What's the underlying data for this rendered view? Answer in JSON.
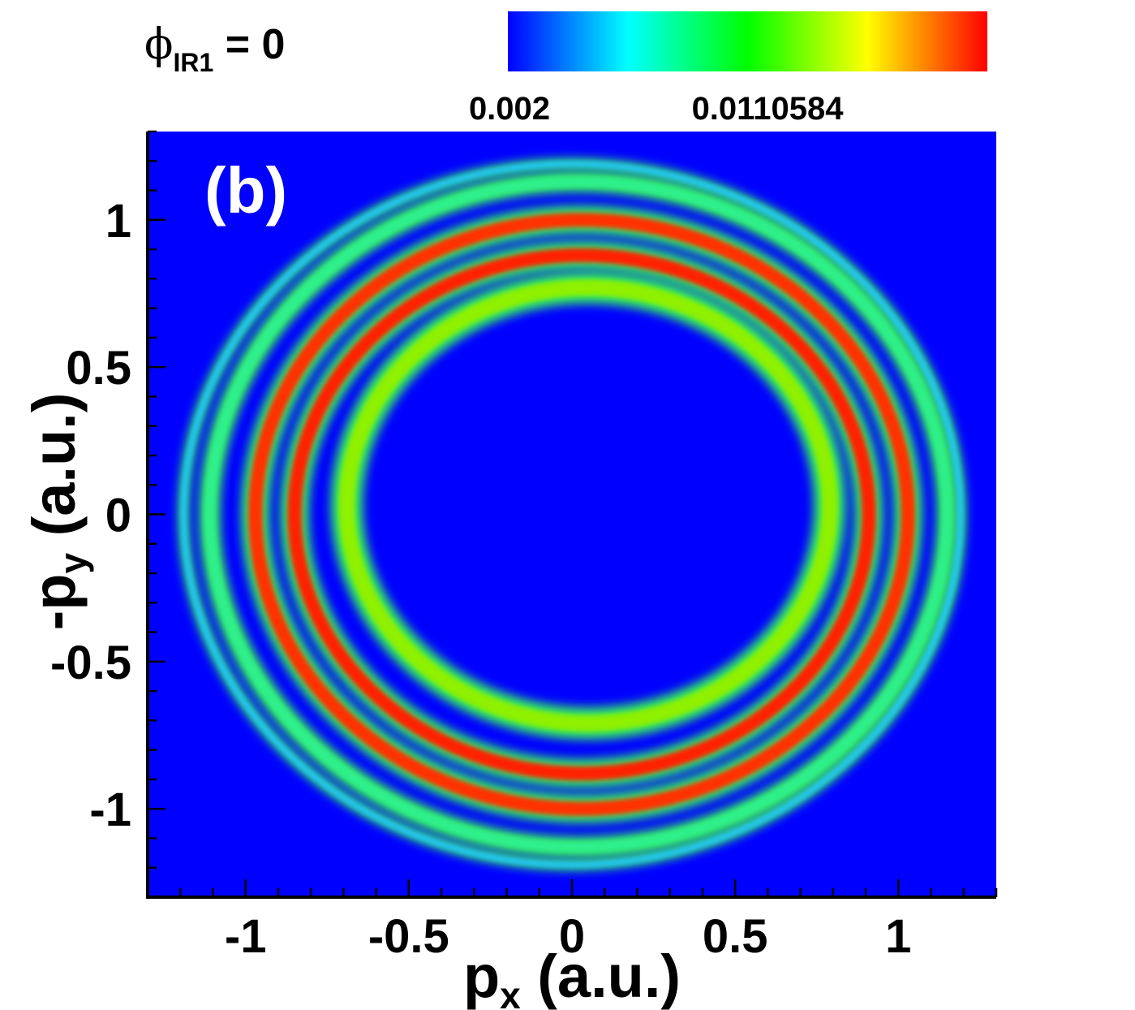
{
  "chart_data": {
    "type": "heatmap",
    "phase_label": {
      "symbol": "ϕ",
      "subscript": "IR1",
      "rest": " = 0"
    },
    "panel_label": "(b)",
    "colorbar": {
      "colormap": [
        "#0000ff",
        "#00ffff",
        "#00ff00",
        "#ffff00",
        "#ff0000"
      ],
      "tick_labels": [
        "0.002",
        "0.0110584"
      ]
    },
    "xlabel": {
      "main": "p",
      "sub": "x",
      "rest": " (a.u.)"
    },
    "ylabel": {
      "main": "-p",
      "sub": "y",
      "rest": " (a.u.)"
    },
    "xlim": [
      -1.3,
      1.3
    ],
    "ylim": [
      -1.3,
      1.3
    ],
    "x_ticks": [
      -1,
      -0.5,
      0,
      0.5,
      1
    ],
    "x_tick_labels": [
      "-1",
      "-0.5",
      "0",
      "0.5",
      "1"
    ],
    "y_ticks": [
      1,
      0.5,
      0,
      -0.5,
      -1
    ],
    "y_tick_labels": [
      "1",
      "0.5",
      "0",
      "-0.5",
      "-1"
    ],
    "background_color": "#0000ff",
    "rings": [
      {
        "name": "inner-spiral-ring",
        "center": [
          0.05,
          0.03
        ],
        "radius": 0.74,
        "width": 0.09,
        "peak_color": "#8ff000"
      },
      {
        "name": "middle-ring-1",
        "center": [
          0.03,
          0.0
        ],
        "radius": 0.88,
        "width": 0.08,
        "peak_color": "#ff2400"
      },
      {
        "name": "middle-ring-2",
        "center": [
          0.03,
          0.0
        ],
        "radius": 1.0,
        "width": 0.08,
        "peak_color": "#ff3000"
      },
      {
        "name": "outer-ring",
        "center": [
          0.02,
          0.0
        ],
        "radius": 1.13,
        "width": 0.06,
        "peak_color": "#2ff08c"
      },
      {
        "name": "faint-outer-arc",
        "center": [
          0.0,
          0.0
        ],
        "radius": 1.19,
        "width": 0.03,
        "peak_color": "#20c8ff"
      }
    ],
    "grid": false
  }
}
